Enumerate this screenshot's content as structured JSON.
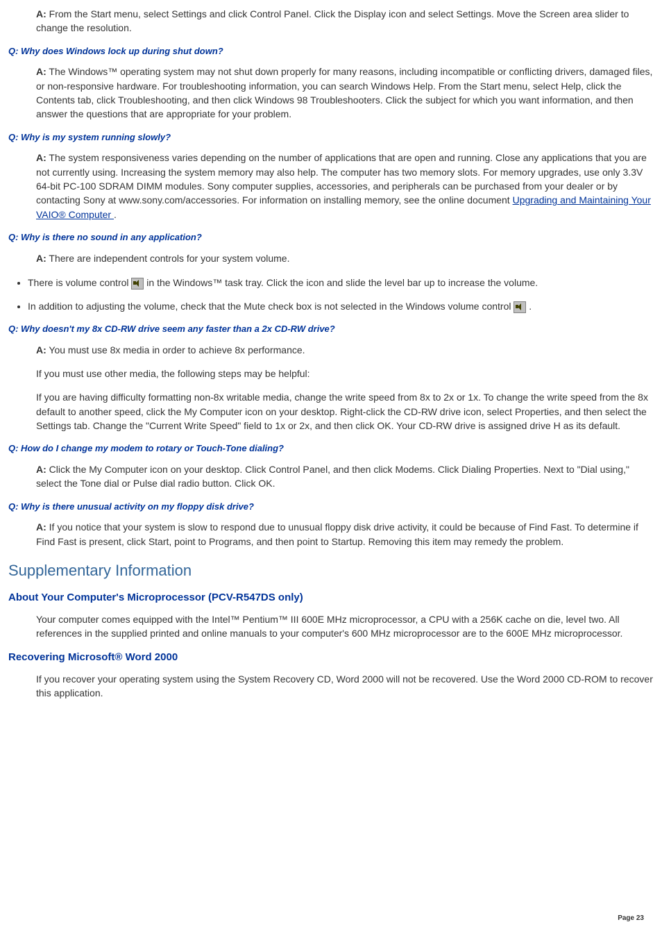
{
  "colors": {
    "body_text": "#333333",
    "question_text": "#003399",
    "section_title": "#336699",
    "link": "#003399",
    "background": "#ffffff",
    "icon_bg": "#c0c0c0",
    "icon_border": "#808080"
  },
  "answer_label": "A:",
  "a1": {
    "text": " From the Start menu, select Settings and click Control Panel. Click the Display icon and select Settings. Move the Screen area slider to change the resolution."
  },
  "q2": "Q: Why does Windows lock up during shut down?",
  "a2": {
    "text": " The Windows™ operating system may not shut down properly for many reasons, including incompatible or conflicting drivers, damaged files, or non-responsive hardware. For troubleshooting information, you can search Windows Help. From the Start menu, select Help, click the Contents tab, click Troubleshooting, and then click Windows 98 Troubleshooters. Click the subject for which you want information, and then answer the questions that are appropriate for your problem."
  },
  "q3": "Q: Why is my system running slowly?",
  "a3": {
    "text": " The system responsiveness varies depending on the number of applications that are open and running. Close any applications that you are not currently using. Increasing the system memory may also help. The computer has two memory slots. For memory upgrades, use only 3.3V 64-bit PC-100 SDRAM DIMM modules. Sony computer supplies, accessories, and peripherals can be purchased from your dealer or by contacting Sony at www.sony.com/accessories. For information on installing memory, see the online document ",
    "link_text": "Upgrading and Maintaining Your VAIO® Computer ",
    "tail": "."
  },
  "q4": "Q: Why is there no sound in any application?",
  "a4": {
    "text": " There are independent controls for your system volume."
  },
  "bullet1": {
    "pre": "There is volume control ",
    "post": " in the Windows™ task tray. Click the icon and slide the level bar up to increase the volume."
  },
  "bullet2": {
    "pre": "In addition to adjusting the volume, check that the Mute check box is not selected in the Windows volume control ",
    "post": " ."
  },
  "q5": "Q: Why doesn't my 8x CD-RW drive seem any faster than a 2x CD-RW drive?",
  "a5": {
    "p1": " You must use 8x media in order to achieve 8x performance.",
    "p2": "If you must use other media, the following steps may be helpful:",
    "p3": "If you are having difficulty formatting non-8x writable media, change the write speed from 8x to 2x or 1x. To change the write speed from the 8x default to another speed, click the My Computer icon on your desktop. Right-click the CD-RW drive icon, select Properties, and then select the Settings tab. Change the \"Current Write Speed\" field to 1x or 2x, and then click OK. Your CD-RW drive is assigned drive H as its default."
  },
  "q6": "Q: How do I change my modem to rotary or Touch-Tone dialing?",
  "a6": {
    "text": " Click the My Computer icon on your desktop. Click Control Panel, and then click Modems. Click Dialing Properties. Next to \"Dial using,\" select the Tone dial or Pulse dial radio button. Click OK."
  },
  "q7": "Q: Why is there unusual activity on my floppy disk drive?",
  "a7": {
    "text": " If you notice that your system is slow to respond due to unusual floppy disk drive activity, it could be because of Find Fast. To determine if Find Fast is present, click Start, point to Programs, and then point to Startup. Removing this item may remedy the problem."
  },
  "section_title": "Supplementary Information",
  "sub1": {
    "heading": "About Your Computer's Microprocessor (PCV-R547DS only)",
    "text": "Your computer comes equipped with the Intel™ Pentium™ III 600E MHz microprocessor, a CPU with a 256K cache on die, level two. All references in the supplied printed and online manuals to your computer's 600 MHz microprocessor are to the 600E MHz microprocessor."
  },
  "sub2": {
    "heading": "Recovering Microsoft® Word 2000",
    "text": "If you recover your operating system using the System Recovery CD, Word 2000 will not be recovered. Use the Word 2000 CD-ROM to recover this application."
  },
  "page_number": "Page 23"
}
